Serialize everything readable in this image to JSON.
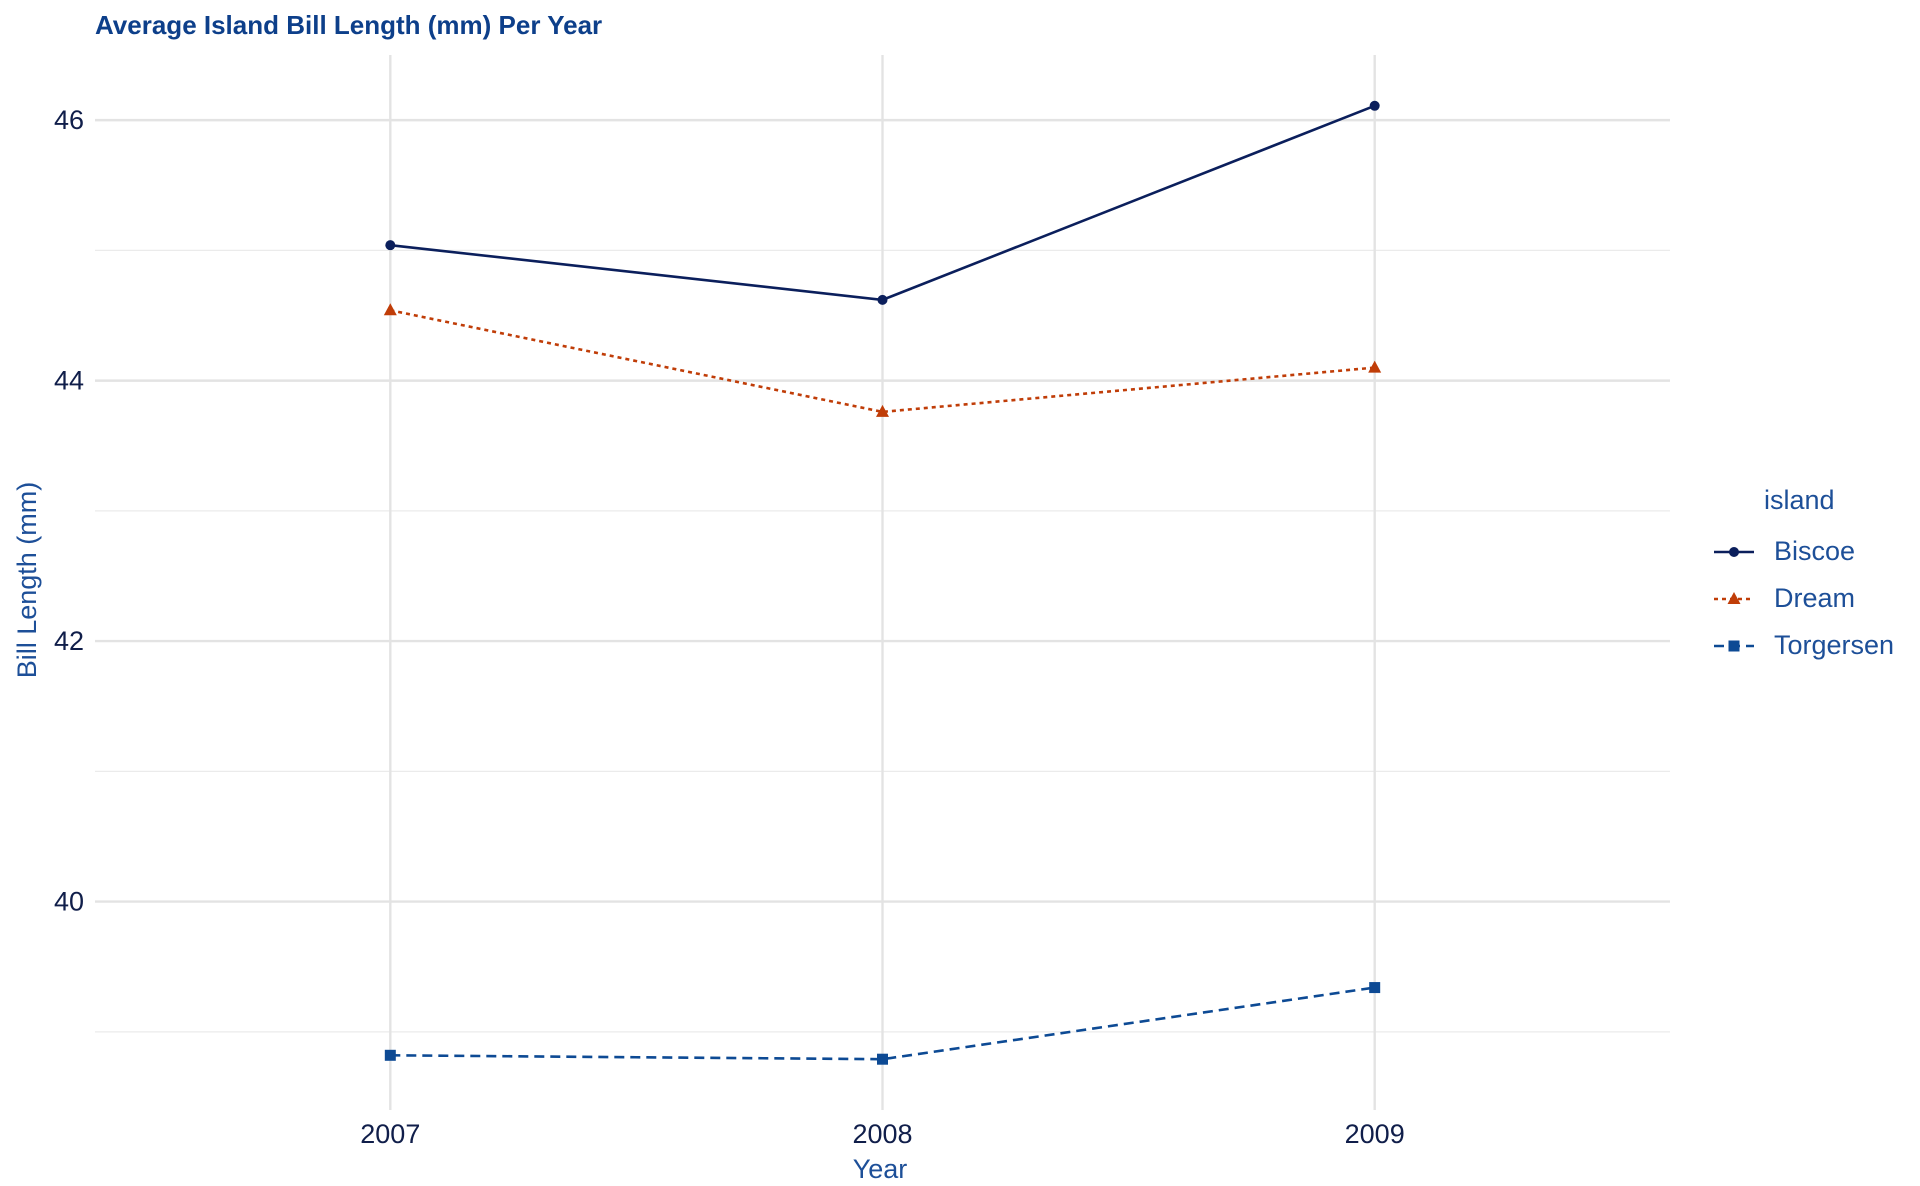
{
  "chart_data": {
    "type": "line",
    "title": "Average Island Bill Length (mm) Per Year",
    "xlabel": "Year",
    "ylabel": "Bill Length (mm)",
    "x": [
      2007,
      2008,
      2009
    ],
    "x_tick_labels": [
      "2007",
      "2008",
      "2009"
    ],
    "xlim": [
      2006.4,
      2009.6
    ],
    "y_ticks": [
      40,
      42,
      44,
      46
    ],
    "y_tick_labels": [
      "40",
      "42",
      "44",
      "46"
    ],
    "ylim": [
      38.4,
      46.5
    ],
    "grid": true,
    "legend_title": "island",
    "legend_position": "right",
    "series": [
      {
        "name": "Biscoe",
        "values": [
          45.04,
          44.62,
          46.11
        ],
        "color": "#0b1f5c",
        "marker": "circle",
        "linestyle": "solid"
      },
      {
        "name": "Dream",
        "values": [
          44.54,
          43.76,
          44.1
        ],
        "color": "#c03d08",
        "marker": "triangle",
        "linestyle": "dotted"
      },
      {
        "name": "Torgersen",
        "values": [
          38.82,
          38.79,
          39.34
        ],
        "color": "#0d4a94",
        "marker": "square",
        "linestyle": "dashed"
      }
    ]
  }
}
